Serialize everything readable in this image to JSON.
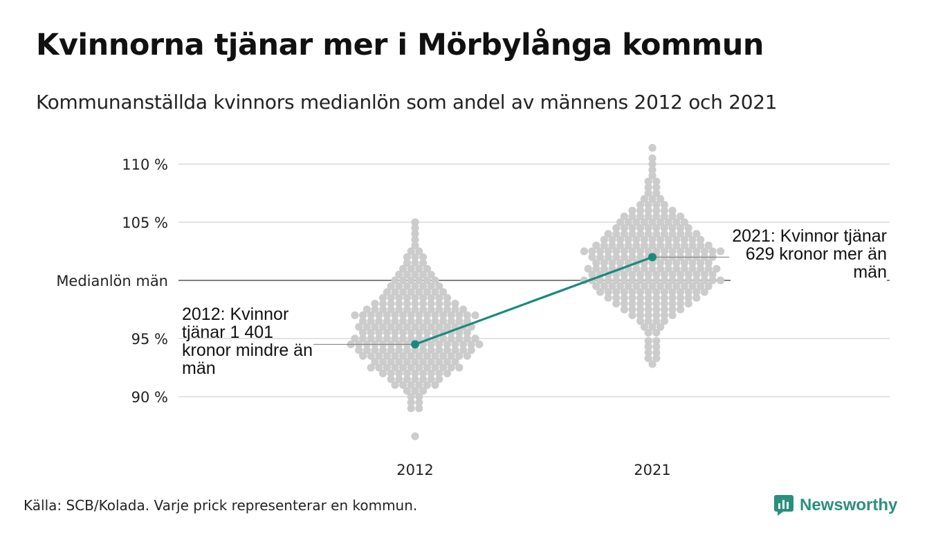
{
  "title": "Kvinnorna tjänar mer i Mörbylånga kommun",
  "subtitle": "Kommunanställda kvinnors medianlön som andel av männens 2012 och 2021",
  "source": "Källa: SCB/Kolada. Varje prick representerar en kommun.",
  "brand": "Newsworthy",
  "colors": {
    "dots": "#cccccc",
    "highlight": "#1a8a7c",
    "grid": "#e3e3e3",
    "reference": "#333333"
  },
  "chart_data": {
    "type": "scatter",
    "title": "Kvinnorna tjänar mer i Mörbylånga kommun",
    "subtitle": "Kommunanställda kvinnors medianlön som andel av männens 2012 och 2021",
    "categories": [
      "2012",
      "2021"
    ],
    "ylim": [
      86,
      111.5
    ],
    "y_ticks": [
      {
        "value": 90,
        "label": "90 %"
      },
      {
        "value": 95,
        "label": "95 %"
      },
      {
        "value": 100,
        "label": "Medianlön män"
      },
      {
        "value": 105,
        "label": "105 %"
      },
      {
        "value": 110,
        "label": "110 %"
      }
    ],
    "grid": true,
    "reference_line": {
      "value": 100,
      "label": "Medianlön män"
    },
    "series": [
      {
        "category": "2012",
        "distribution": [
          {
            "y": 86.6,
            "count": 1
          },
          {
            "y": 89.0,
            "count": 2
          },
          {
            "y": 89.5,
            "count": 2
          },
          {
            "y": 90.0,
            "count": 2
          },
          {
            "y": 90.5,
            "count": 3
          },
          {
            "y": 91.0,
            "count": 6
          },
          {
            "y": 91.5,
            "count": 7
          },
          {
            "y": 92.0,
            "count": 9
          },
          {
            "y": 92.5,
            "count": 12
          },
          {
            "y": 93.0,
            "count": 11
          },
          {
            "y": 93.5,
            "count": 14
          },
          {
            "y": 94.0,
            "count": 15
          },
          {
            "y": 94.5,
            "count": 17
          },
          {
            "y": 95.0,
            "count": 16
          },
          {
            "y": 95.5,
            "count": 14
          },
          {
            "y": 96.0,
            "count": 15
          },
          {
            "y": 96.5,
            "count": 14
          },
          {
            "y": 97.0,
            "count": 16
          },
          {
            "y": 97.5,
            "count": 13
          },
          {
            "y": 98.0,
            "count": 11
          },
          {
            "y": 98.5,
            "count": 9
          },
          {
            "y": 99.0,
            "count": 8
          },
          {
            "y": 99.5,
            "count": 7
          },
          {
            "y": 100.0,
            "count": 6
          },
          {
            "y": 100.5,
            "count": 5
          },
          {
            "y": 101.0,
            "count": 4
          },
          {
            "y": 101.5,
            "count": 3
          },
          {
            "y": 102.0,
            "count": 3
          },
          {
            "y": 102.5,
            "count": 2
          },
          {
            "y": 103.0,
            "count": 1
          },
          {
            "y": 103.5,
            "count": 1
          },
          {
            "y": 104.0,
            "count": 1
          },
          {
            "y": 104.5,
            "count": 1
          },
          {
            "y": 105.0,
            "count": 1
          }
        ]
      },
      {
        "category": "2021",
        "distribution": [
          {
            "y": 92.8,
            "count": 1
          },
          {
            "y": 93.3,
            "count": 2
          },
          {
            "y": 93.8,
            "count": 2
          },
          {
            "y": 94.3,
            "count": 2
          },
          {
            "y": 94.8,
            "count": 2
          },
          {
            "y": 95.5,
            "count": 2
          },
          {
            "y": 96.0,
            "count": 3
          },
          {
            "y": 96.5,
            "count": 4
          },
          {
            "y": 97.0,
            "count": 6
          },
          {
            "y": 97.5,
            "count": 8
          },
          {
            "y": 98.0,
            "count": 10
          },
          {
            "y": 98.5,
            "count": 12
          },
          {
            "y": 99.0,
            "count": 14
          },
          {
            "y": 99.5,
            "count": 15
          },
          {
            "y": 100.0,
            "count": 18
          },
          {
            "y": 100.5,
            "count": 16
          },
          {
            "y": 101.0,
            "count": 17
          },
          {
            "y": 101.5,
            "count": 15
          },
          {
            "y": 102.0,
            "count": 16
          },
          {
            "y": 102.5,
            "count": 18
          },
          {
            "y": 103.0,
            "count": 15
          },
          {
            "y": 103.5,
            "count": 13
          },
          {
            "y": 104.0,
            "count": 12
          },
          {
            "y": 104.5,
            "count": 10
          },
          {
            "y": 105.0,
            "count": 9
          },
          {
            "y": 105.5,
            "count": 8
          },
          {
            "y": 106.0,
            "count": 6
          },
          {
            "y": 106.5,
            "count": 4
          },
          {
            "y": 107.0,
            "count": 3
          },
          {
            "y": 107.5,
            "count": 2
          },
          {
            "y": 108.0,
            "count": 2
          },
          {
            "y": 108.5,
            "count": 2
          },
          {
            "y": 109.0,
            "count": 1
          },
          {
            "y": 109.5,
            "count": 1
          },
          {
            "y": 110.0,
            "count": 1
          },
          {
            "y": 110.5,
            "count": 1
          },
          {
            "y": 111.4,
            "count": 1
          }
        ]
      }
    ],
    "highlight": {
      "name": "Mörbylånga",
      "points": [
        {
          "x": "2012",
          "y": 94.5
        },
        {
          "x": "2021",
          "y": 102.0
        }
      ]
    },
    "annotations": [
      {
        "x": "2012",
        "y": 94.5,
        "text": "2012: Kvinnor tjänar 1 401 kronor mindre än män",
        "side": "left"
      },
      {
        "x": "2021",
        "y": 102.0,
        "text": "2021: Kvinnor tjänar 629 kronor mer än män",
        "side": "right"
      }
    ]
  }
}
